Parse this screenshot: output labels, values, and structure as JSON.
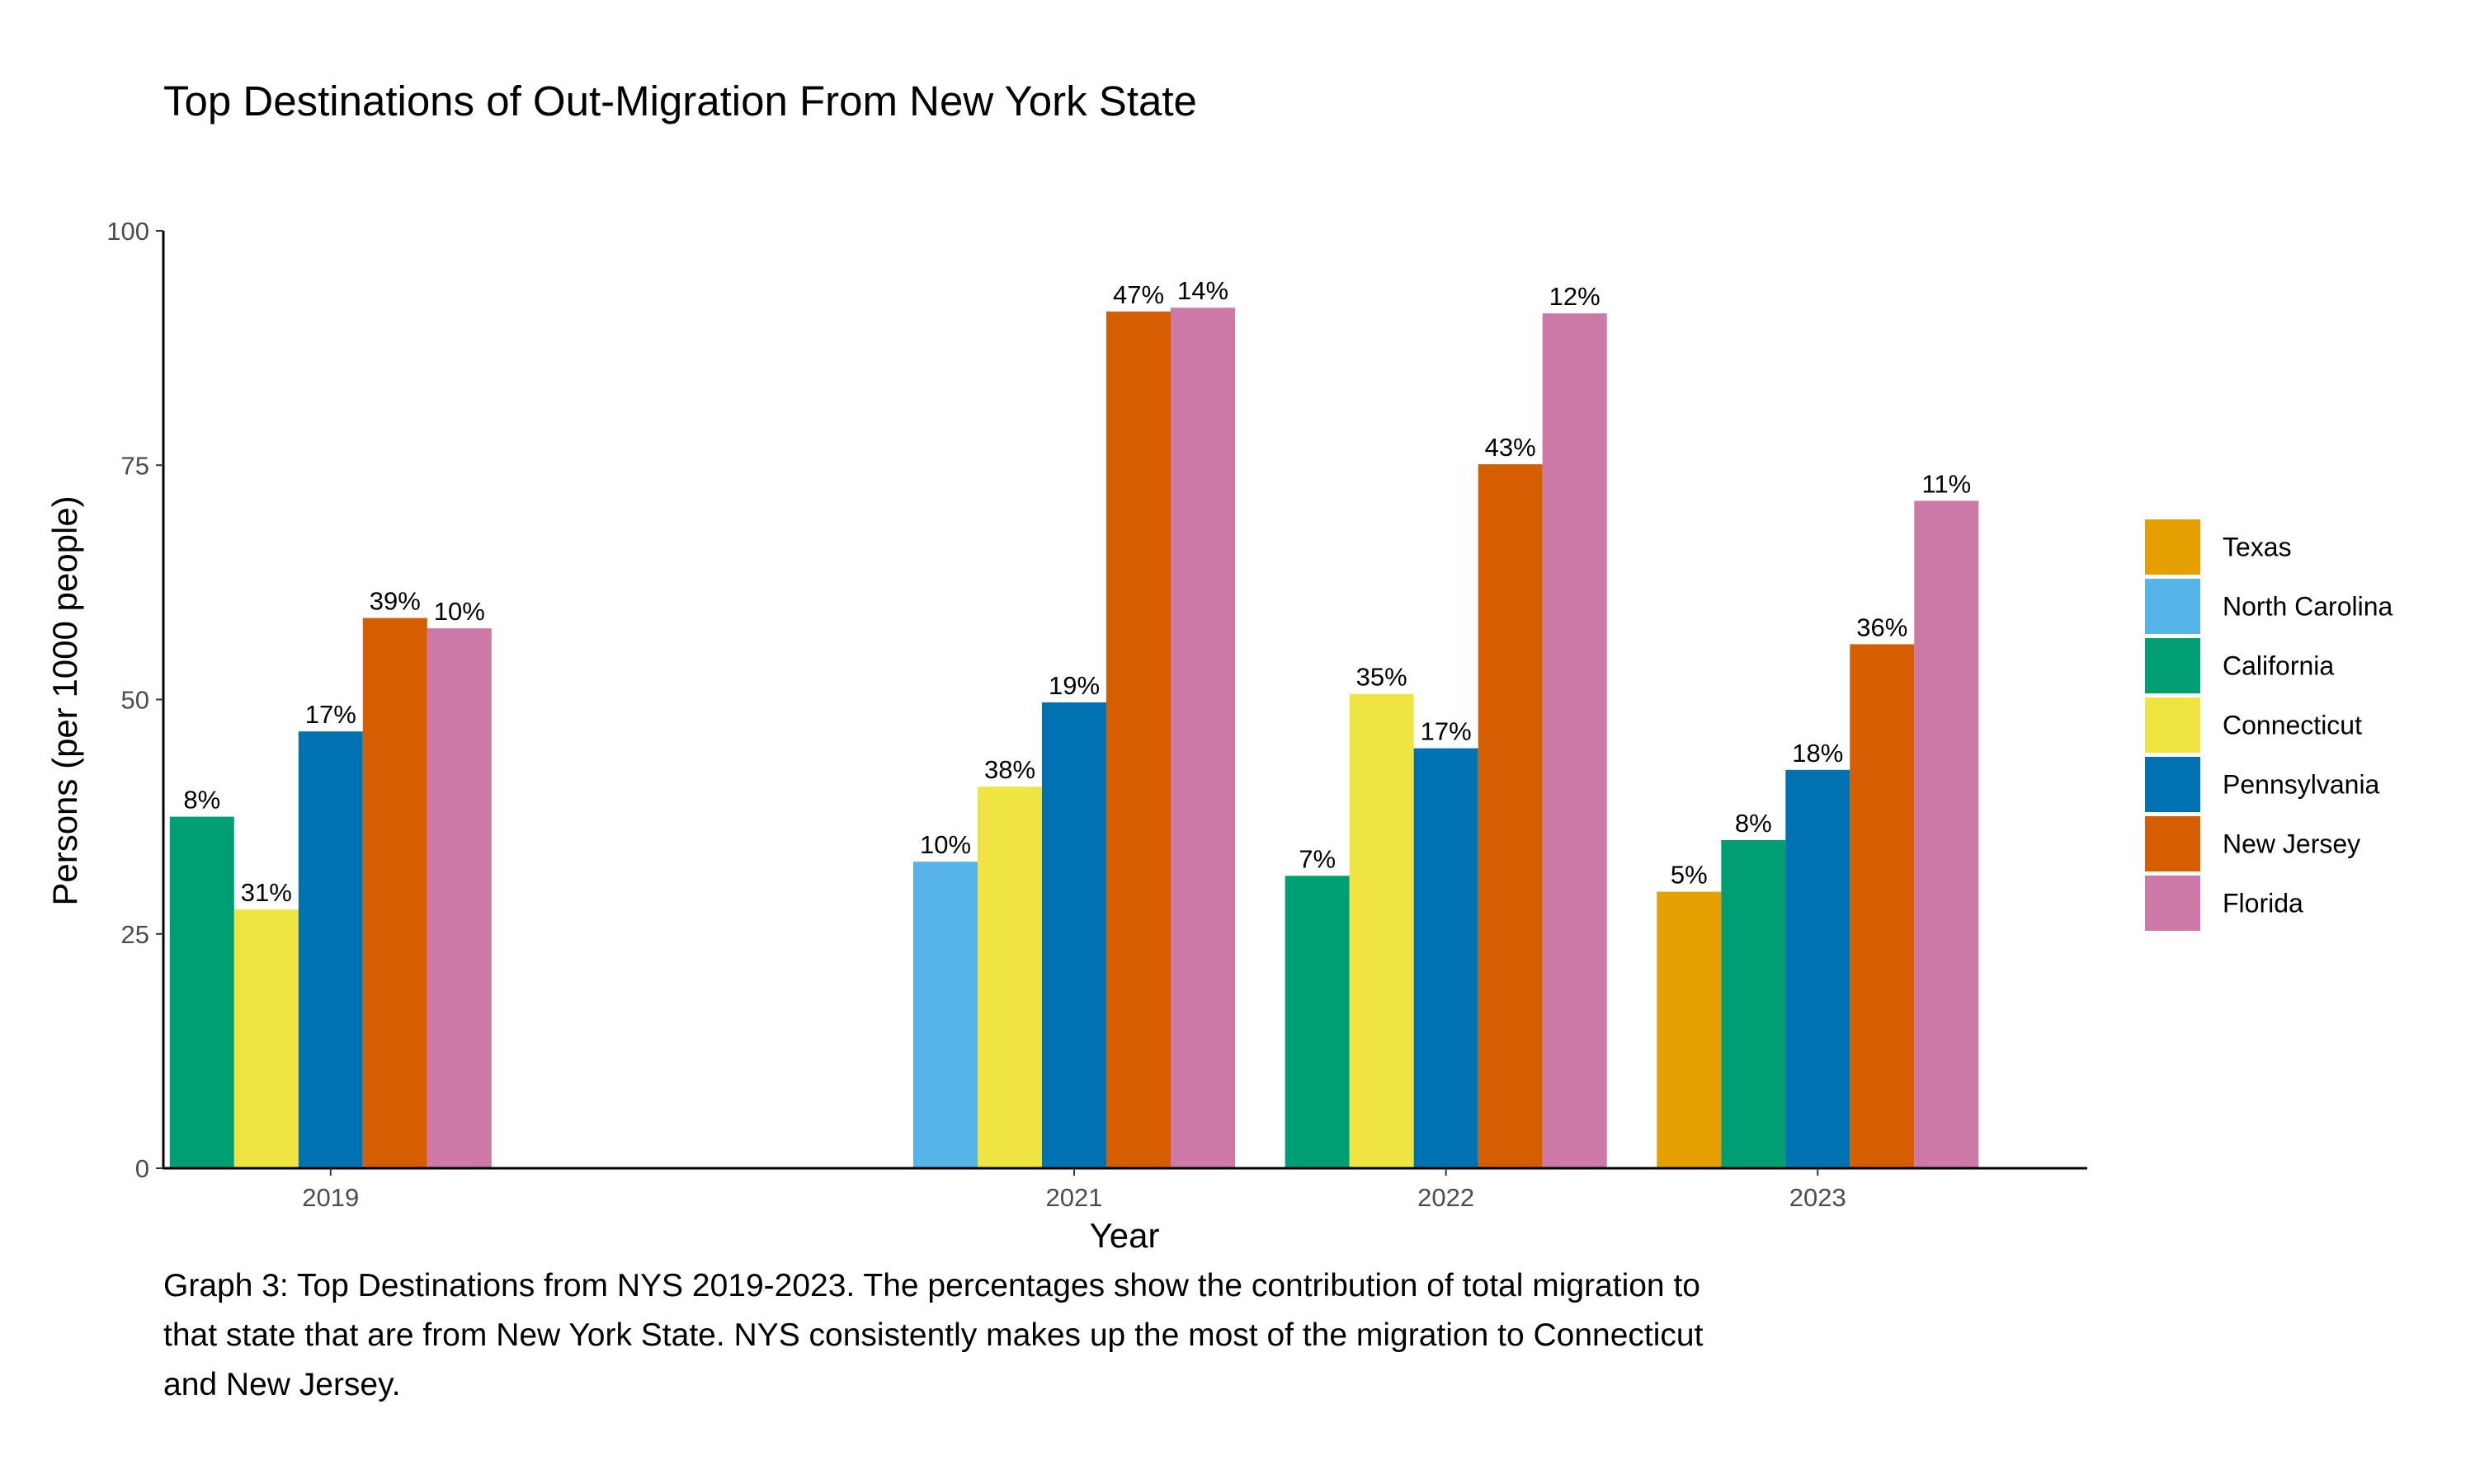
{
  "chart_data": {
    "type": "bar",
    "title": "Top Destinations of Out-Migration From New York State",
    "xlabel": "Year",
    "ylabel": "Persons (per 1000 people)",
    "ylim": [
      0,
      100
    ],
    "yticks": [
      0,
      25,
      50,
      75,
      100
    ],
    "grid": false,
    "legend_position": "right",
    "categories": [
      2019,
      2021,
      2022,
      2023
    ],
    "series": [
      {
        "name": "Texas",
        "color": "#E69F00",
        "values": [
          null,
          null,
          null,
          29.5
        ],
        "labels": [
          "",
          "",
          "",
          "5%"
        ]
      },
      {
        "name": "North Carolina",
        "color": "#56B4E9",
        "values": [
          null,
          32.7,
          null,
          null
        ],
        "labels": [
          "",
          "10%",
          "",
          ""
        ]
      },
      {
        "name": "California",
        "color": "#009E73",
        "values": [
          37.5,
          null,
          31.2,
          35.0
        ],
        "labels": [
          "8%",
          "",
          "7%",
          "8%"
        ]
      },
      {
        "name": "Connecticut",
        "color": "#F0E442",
        "values": [
          27.6,
          40.7,
          50.6,
          null
        ],
        "labels": [
          "31%",
          "38%",
          "35%",
          ""
        ]
      },
      {
        "name": "Pennsylvania",
        "color": "#0072B2",
        "values": [
          46.6,
          49.7,
          44.8,
          42.5
        ],
        "labels": [
          "17%",
          "19%",
          "17%",
          "18%"
        ]
      },
      {
        "name": "New Jersey",
        "color": "#D55E00",
        "values": [
          58.7,
          91.4,
          75.1,
          55.9
        ],
        "labels": [
          "39%",
          "47%",
          "43%",
          "36%"
        ]
      },
      {
        "name": "Florida",
        "color": "#CC79A7",
        "values": [
          57.6,
          91.8,
          91.2,
          71.2
        ],
        "labels": [
          "10%",
          "14%",
          "12%",
          "11%"
        ]
      }
    ]
  },
  "caption": "Graph 3: Top Destinations from NYS 2019-2023. The percentages show the contribution of total migration to that state that are from New York State. NYS consistently makes up the most of the migration to Connecticut and New Jersey."
}
